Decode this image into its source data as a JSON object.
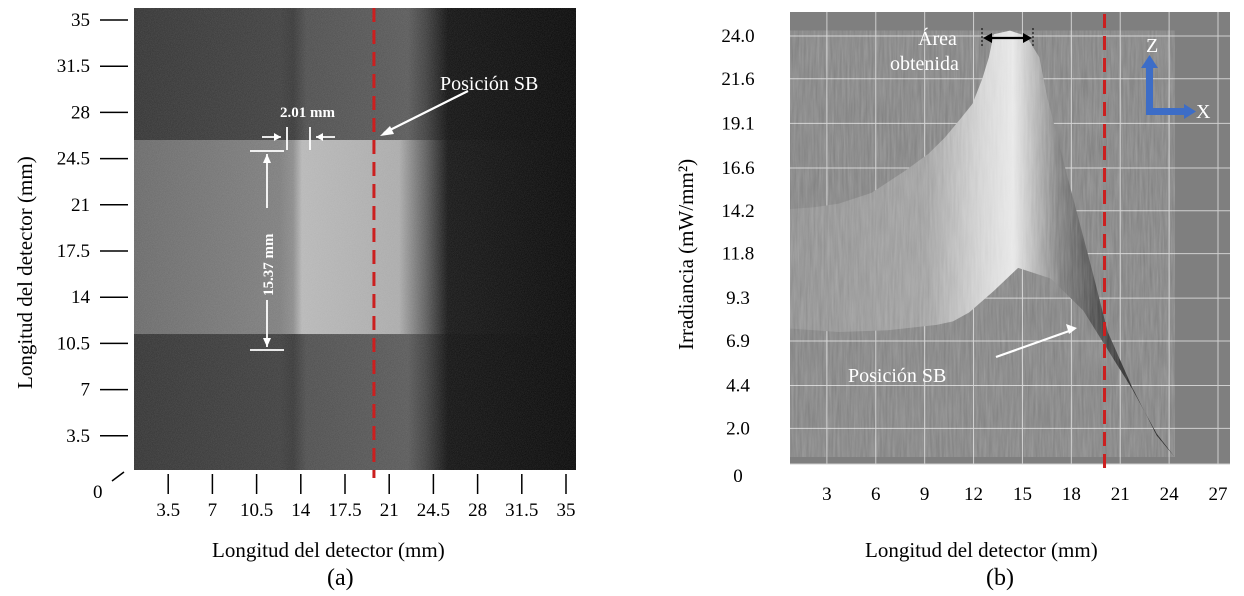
{
  "chart_data": [
    {
      "type": "heatmap",
      "panel_label": "(a)",
      "xlabel": "Longitud del detector (mm)",
      "ylabel": "Longitud del detector (mm)",
      "x_ticks": [
        "3.5",
        "7",
        "10.5",
        "14",
        "17.5",
        "21",
        "24.5",
        "28",
        "31.5",
        "35"
      ],
      "y_ticks": [
        "35",
        "31.5",
        "28",
        "24.5",
        "21",
        "17.5",
        "14",
        "10.5",
        "7",
        "3.5"
      ],
      "origin_label": "0",
      "xlim": [
        0,
        35
      ],
      "ylim": [
        0,
        35
      ],
      "marker_line": {
        "label": "Posición SB",
        "x": 19,
        "color": "#cc1f1f"
      },
      "dimension_annotations": [
        {
          "label": "2.01 mm",
          "from": 13.0,
          "to": 15.01,
          "at_y": 26.4
        },
        {
          "label": "15.37 mm",
          "from": 10.4,
          "to": 25.8,
          "at_x": 11.0
        }
      ],
      "bright_region": {
        "x": [
          0,
          25
        ],
        "y": [
          10.3,
          25.0
        ]
      }
    },
    {
      "type": "area",
      "panel_label": "(b)",
      "xlabel": "Longitud del detector (mm)",
      "ylabel": "Irradiancia (mW/mm²)",
      "x_ticks": [
        "3",
        "6",
        "9",
        "12",
        "15",
        "18",
        "21",
        "24",
        "27"
      ],
      "y_ticks": [
        "24.0",
        "21.6",
        "19.1",
        "16.6",
        "14.2",
        "11.8",
        "9.3",
        "6.9",
        "4.4",
        "2.0",
        "0"
      ],
      "xlim": [
        0,
        27
      ],
      "ylim": [
        0,
        24
      ],
      "marker_line": {
        "label": "Posición SB",
        "x": 19.3,
        "color": "#cc1f1f"
      },
      "region_annotation": {
        "label_line1": "Área",
        "label_line2": "obtenida",
        "from": 12.0,
        "to": 15.3,
        "at_y": 23.6
      },
      "axes_icon": {
        "z": "Z",
        "x": "X",
        "color": "#3d6dc7"
      },
      "profile_top": {
        "x": [
          0,
          1.5,
          3,
          5,
          7,
          8.5,
          9.5,
          10.5,
          11.2,
          11.8,
          12.2,
          12.5,
          13.5,
          14.5,
          15.3,
          15.8,
          17,
          18.5,
          19.5,
          21,
          22.5,
          23.6
        ],
        "y": [
          14.3,
          14.4,
          14.6,
          15.2,
          16.4,
          17.4,
          18.3,
          19.4,
          20.2,
          21.6,
          22.8,
          24.1,
          24.3,
          24.0,
          22.8,
          20.5,
          16.2,
          11.0,
          7.4,
          4.3,
          1.6,
          0.4
        ]
      },
      "profile_bottom": {
        "x": [
          0,
          3,
          6,
          9,
          10,
          11,
          12.5,
          14,
          16,
          18,
          19.5,
          21,
          22.5,
          23.6
        ],
        "y": [
          7.6,
          7.4,
          7.5,
          7.8,
          8.0,
          8.5,
          9.7,
          11.0,
          10.4,
          8.6,
          6.4,
          4.2,
          1.7,
          0.4
        ]
      }
    }
  ]
}
